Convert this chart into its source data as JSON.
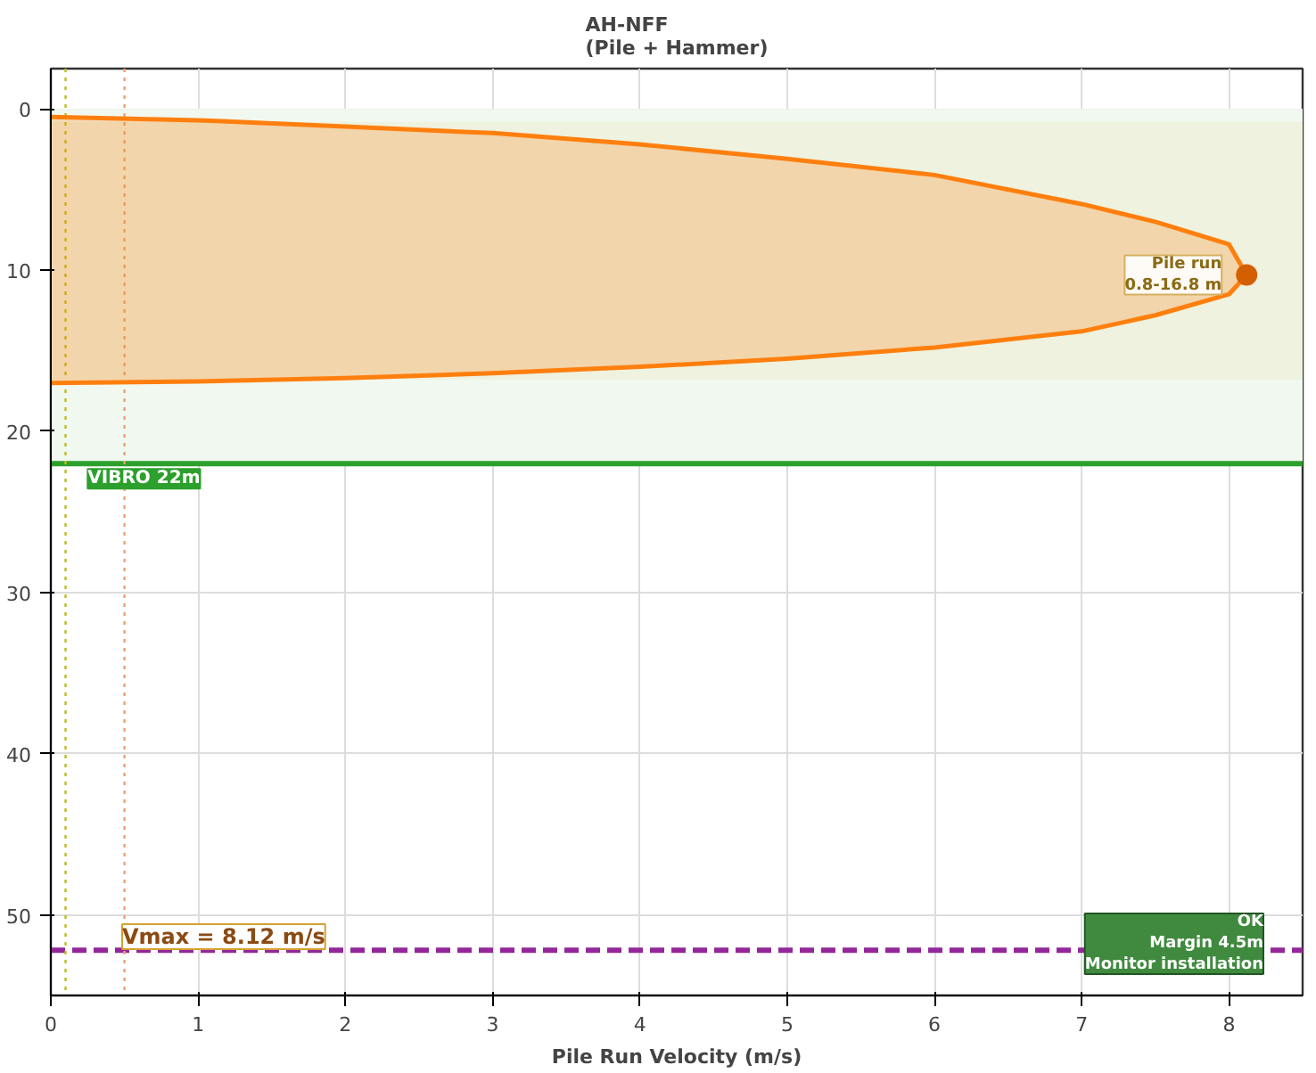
{
  "chart_data": {
    "type": "area",
    "title": "AH-NFF\n(Pile + Hammer)",
    "xlabel": "Pile Run Velocity (m/s)",
    "xlim": [
      0,
      8.5
    ],
    "xticks": [
      0,
      1,
      2,
      3,
      4,
      5,
      6,
      7,
      8
    ],
    "ylim": [
      55,
      -2.5
    ],
    "yticks": [
      0,
      10,
      20,
      30,
      40,
      50
    ],
    "grid": true,
    "series": [
      {
        "color": "#ff7f0e",
        "x": [
          0,
          1,
          2,
          3,
          4,
          5,
          6,
          7,
          7.5,
          8,
          8.12,
          8,
          7.5,
          7,
          6,
          5,
          4,
          3,
          2,
          1,
          0
        ],
        "values": [
          0.5,
          0.7,
          1.1,
          1.5,
          2.2,
          3.1,
          4.1,
          5.9,
          7.0,
          8.4,
          10.3,
          11.5,
          12.8,
          13.8,
          14.8,
          15.5,
          16.0,
          16.4,
          16.7,
          16.9,
          17.0
        ]
      },
      {
        "type": "scatter",
        "color": "#d35f00",
        "marker": "circle",
        "x": [
          8.12
        ],
        "values": [
          10.3
        ]
      }
    ],
    "bands": [
      {
        "axis": "y",
        "from": 0,
        "to": 22,
        "label": null,
        "color": "#f1f8ef"
      },
      {
        "axis": "y",
        "from": 0.8,
        "to": 16.8,
        "label": null,
        "color": "#eef2df"
      }
    ],
    "ref_lines": [
      {
        "axis": "y",
        "value": 22,
        "label": "VIBRO 22m",
        "color": "#2ca02c",
        "line_style": "solid"
      },
      {
        "axis": "y",
        "value": 52.2,
        "label": null,
        "color": "#93279a",
        "line_style": "dashed"
      },
      {
        "axis": "x",
        "value": 0.1,
        "label": null,
        "color": "#bcbd22",
        "line_style": "dotted"
      },
      {
        "axis": "x",
        "value": 0.5,
        "label": null,
        "color": "#f0a070",
        "line_style": "dotted"
      }
    ],
    "annotations": [
      {
        "text": "Pile run\n0.8-16.8 m",
        "x": 8.12,
        "y": 10.3
      },
      "Vmax = 8.12 m/s",
      "OK\nMargin 4.5m\nMonitor installation"
    ]
  }
}
